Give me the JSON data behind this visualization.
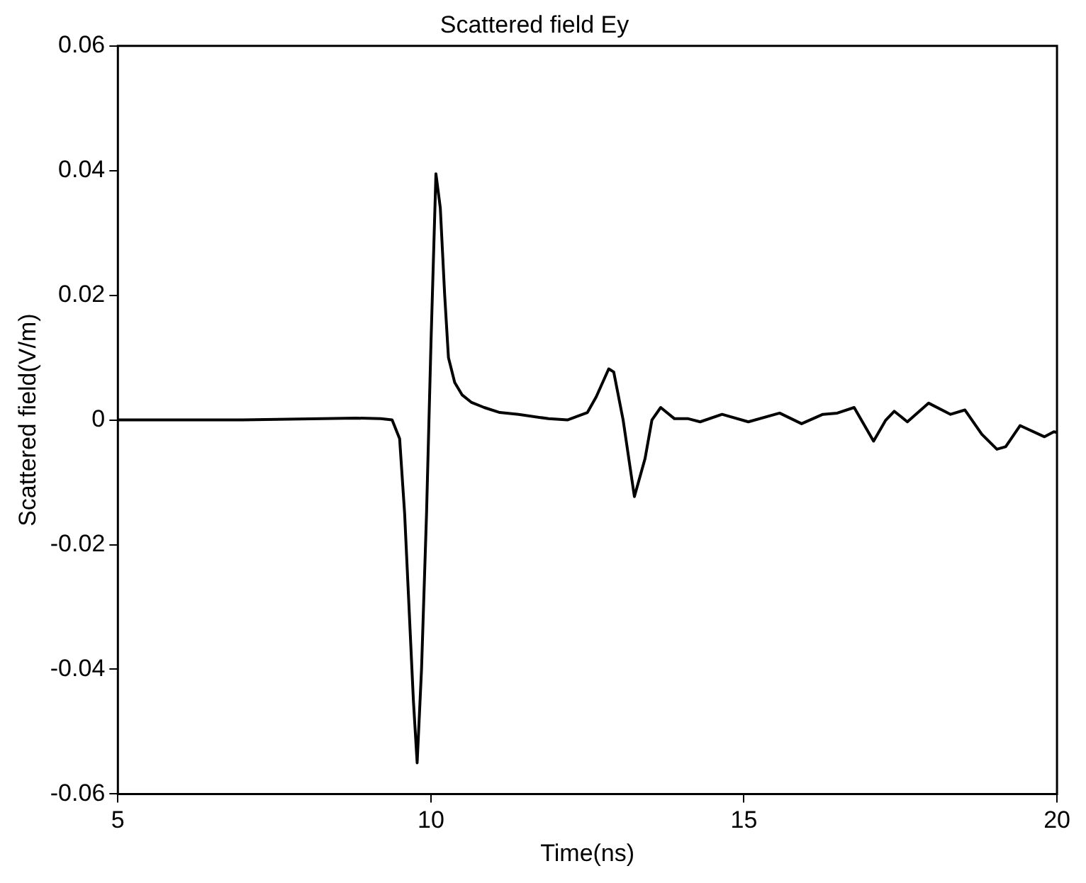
{
  "chart_data": {
    "type": "line",
    "title": "Scattered field Ey",
    "xlabel": "Time(ns)",
    "ylabel": "Scattered field(V/m)",
    "xlim": [
      5,
      20
    ],
    "xticks": [
      5,
      10,
      15,
      20
    ],
    "ylim": [
      -0.06,
      0.06
    ],
    "yticks": [
      -0.06,
      -0.04,
      -0.02,
      0,
      0.02,
      0.04,
      0.06
    ],
    "grid": false,
    "legend": false,
    "marker": "none",
    "line_style": "solid",
    "series": [
      {
        "color": "#000000",
        "x": [
          5,
          7,
          8.8,
          9.2,
          9.38,
          9.5,
          9.58,
          9.65,
          9.72,
          9.78,
          9.85,
          9.93,
          10.0,
          10.08,
          10.15,
          10.22,
          10.28,
          10.38,
          10.5,
          10.65,
          10.85,
          11.1,
          11.4,
          11.88,
          12.18,
          12.5,
          12.64,
          12.84,
          12.92,
          13.07,
          13.25,
          13.42,
          13.53,
          13.67,
          13.89,
          14.11,
          14.3,
          14.65,
          15.07,
          15.57,
          15.92,
          16.26,
          16.49,
          16.76,
          17.07,
          17.26,
          17.4,
          17.61,
          17.95,
          18.3,
          18.53,
          18.8,
          19.04,
          19.18,
          19.41,
          19.8,
          19.95,
          20
        ],
        "values": [
          0,
          0,
          0.0003,
          0.0002,
          0,
          -0.003,
          -0.015,
          -0.03,
          -0.045,
          -0.055,
          -0.04,
          -0.015,
          0.012,
          0.0395,
          0.034,
          0.02,
          0.01,
          0.006,
          0.004,
          0.0028,
          0.002,
          0.0012,
          0.0009,
          0.0002,
          0,
          0.0012,
          0.0037,
          0.0082,
          0.0077,
          0,
          -0.0123,
          -0.0062,
          0,
          0.002,
          0.0002,
          0.0002,
          -0.0003,
          0.0009,
          -0.0003,
          0.0011,
          -0.0006,
          0.0009,
          0.0011,
          0.002,
          -0.0034,
          -0.0001,
          0.0014,
          -0.0003,
          0.0027,
          0.0009,
          0.0016,
          -0.0023,
          -0.0047,
          -0.0043,
          -0.0009,
          -0.0027,
          -0.0019,
          -0.002
        ]
      }
    ]
  }
}
